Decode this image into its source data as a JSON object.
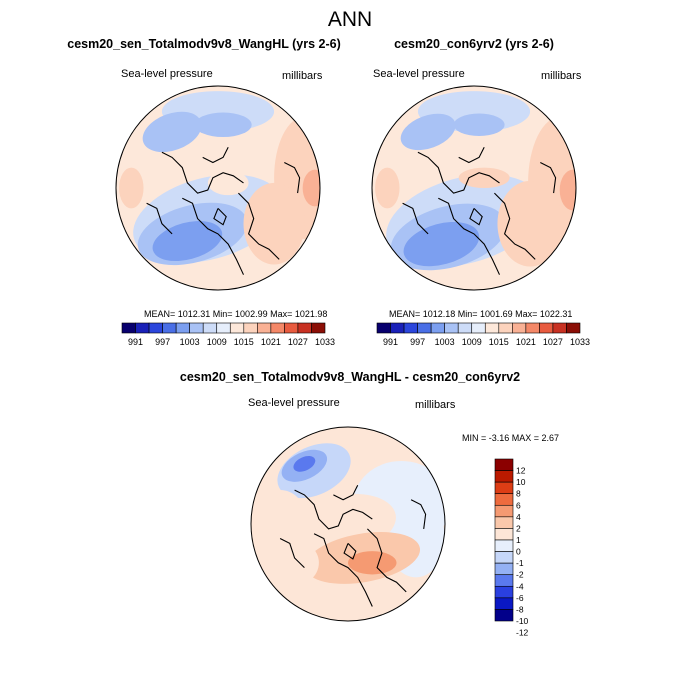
{
  "title": "ANN",
  "panels": [
    {
      "title": "cesm20_sen_Totalmodv9v8_WangHL (yrs 2-6)",
      "variable": "Sea-level pressure",
      "units": "millibars",
      "stats": "MEAN= 1012.31  Min= 1002.99  Max= 1021.98"
    },
    {
      "title": "cesm20_con6yrv2 (yrs 2-6)",
      "variable": "Sea-level pressure",
      "units": "millibars",
      "stats": "MEAN= 1012.18  Min= 1001.69  Max= 1022.31"
    }
  ],
  "diff_panel": {
    "title": "cesm20_sen_Totalmodv9v8_WangHL - cesm20_con6yrv2",
    "variable": "Sea-level pressure",
    "units": "millibars",
    "stats": "MIN =  -3.16 MAX =   2.67"
  },
  "colors": {
    "abs_scale": [
      "#08006e",
      "#1a21b8",
      "#2b46dc",
      "#4a6fe6",
      "#7c9ff0",
      "#a9c2f5",
      "#cddcf8",
      "#e6eefb",
      "#fde8da",
      "#fcd3bd",
      "#f9b195",
      "#f48868",
      "#e85b3f",
      "#c83122",
      "#8b0e06"
    ],
    "diff_scale": [
      "#02008a",
      "#0a18c4",
      "#2a40e0",
      "#5a79ee",
      "#94b1f4",
      "#c6d7f9",
      "#e7effc",
      "#fde6d7",
      "#fac8ab",
      "#f59a72",
      "#ee6b3e",
      "#dd3d15",
      "#bb1a00",
      "#8b0000"
    ],
    "land": "#000000"
  },
  "chart_data": [
    {
      "type": "heatmap",
      "projection": "north polar stereographic",
      "title": "cesm20_sen_Totalmodv9v8_WangHL (yrs 2-6)",
      "colorbar_ticks": [
        "991",
        "997",
        "1003",
        "1009",
        "1015",
        "1021",
        "1027",
        "1033"
      ],
      "mean": 1012.31,
      "min": 1002.99,
      "max": 1021.98
    },
    {
      "type": "heatmap",
      "projection": "north polar stereographic",
      "title": "cesm20_con6yrv2 (yrs 2-6)",
      "colorbar_ticks": [
        "991",
        "997",
        "1003",
        "1009",
        "1015",
        "1021",
        "1027",
        "1033"
      ],
      "mean": 1012.18,
      "min": 1001.69,
      "max": 1022.31
    },
    {
      "type": "heatmap",
      "projection": "north polar stereographic",
      "title": "cesm20_sen_Totalmodv9v8_WangHL - cesm20_con6yrv2",
      "colorbar_ticks": [
        "12",
        "10",
        "8",
        "6",
        "4",
        "2",
        "1",
        "0",
        "-1",
        "-2",
        "-4",
        "-6",
        "-8",
        "-10",
        "-12"
      ],
      "min": -3.16,
      "max": 2.67
    }
  ]
}
